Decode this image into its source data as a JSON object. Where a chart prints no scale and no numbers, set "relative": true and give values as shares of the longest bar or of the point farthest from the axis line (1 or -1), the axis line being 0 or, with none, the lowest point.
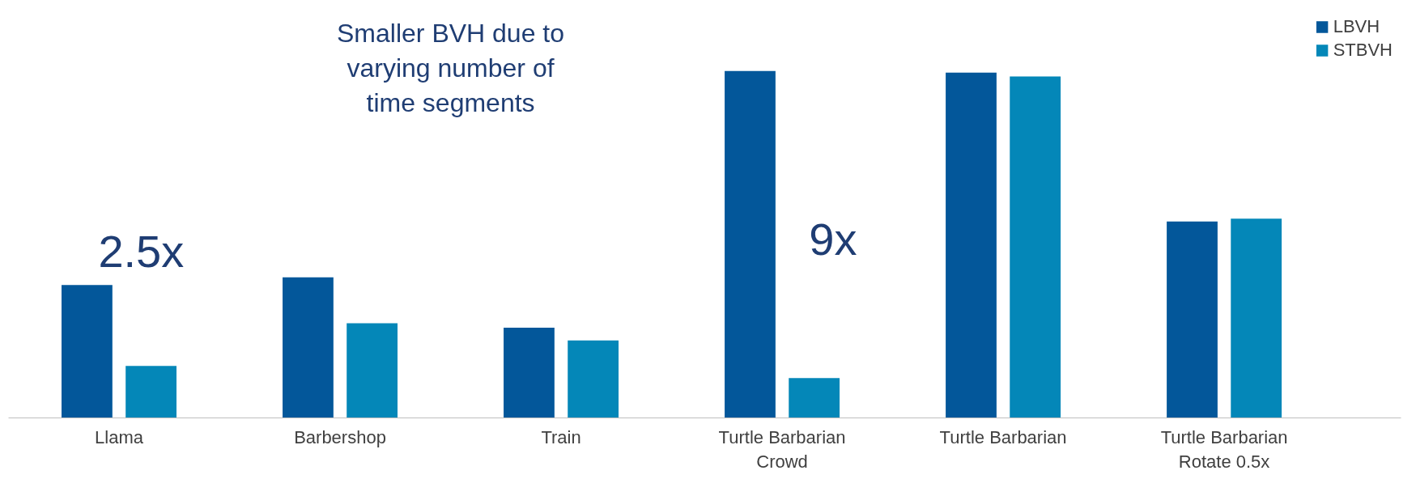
{
  "chart_data": {
    "type": "bar",
    "relative": true,
    "categories": [
      "Llama",
      "Barbershop",
      "Train",
      "Turtle Barbarian\nCrowd",
      "Turtle Barbarian",
      "Turtle Barbarian\nRotate 0.5x"
    ],
    "series": [
      {
        "name": "LBVH",
        "color": "#03579a",
        "values": [
          0.383,
          0.405,
          0.26,
          1,
          0.995,
          0.566
        ]
      },
      {
        "name": "STBVH",
        "color": "#0487b8",
        "values": [
          0.15,
          0.273,
          0.223,
          0.115,
          0.984,
          0.574
        ]
      }
    ],
    "annotations": [
      "Smaller BVH due to varying number of time segments",
      "2.5x",
      "9x"
    ],
    "legend": "top right"
  }
}
